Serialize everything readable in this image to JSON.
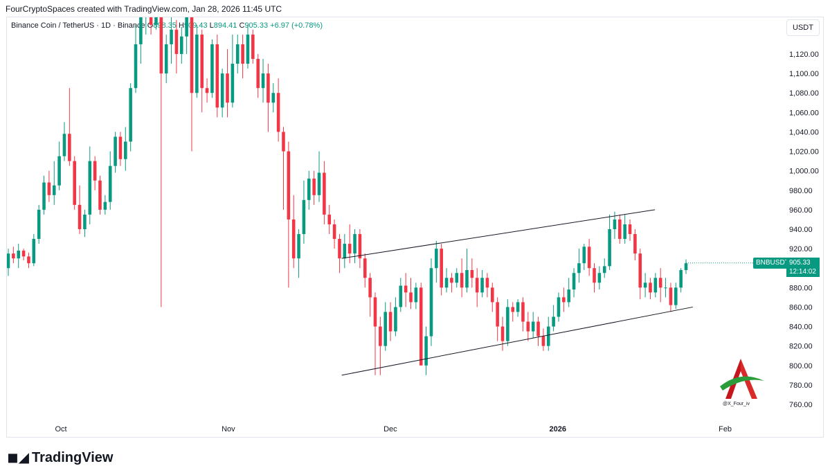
{
  "caption": "FourCryptoSpaces created with TradingView.com, Jan 28, 2026 11:45 UTC",
  "legend": {
    "symbol": "Binance Coin / TetherUS · 1D · Binance",
    "open_label": "O",
    "open": "898.35",
    "high_label": "H",
    "high": "909.43",
    "low_label": "L",
    "low": "894.41",
    "close_label": "C",
    "close": "905.33",
    "change": "+6.97 (+0.78%)"
  },
  "quote_currency": "USDT",
  "symbol_tag": "BNBUSDT",
  "last_price": "905.33",
  "countdown": "12:14:02",
  "brand": "TradingView",
  "watermark_text": "@X_Four_iv",
  "colors": {
    "up": "#089981",
    "down": "#f23645",
    "tag": "#089981"
  },
  "chart_data": {
    "type": "candlestick",
    "y_ticks": [
      "760.00",
      "780.00",
      "800.00",
      "820.00",
      "840.00",
      "860.00",
      "880.00",
      "900.00",
      "920.00",
      "940.00",
      "960.00",
      "980.00",
      "1,000.00",
      "1,020.00",
      "1,040.00",
      "1,060.00",
      "1,080.00",
      "1,100.00",
      "1,120.00"
    ],
    "x_ticks": [
      "Oct",
      "Nov",
      "Dec",
      "2026",
      "Feb"
    ],
    "x_tick_dates": [
      "2025-10-01",
      "2025-11-01",
      "2025-12-01",
      "2026-01-01",
      "2026-02-01"
    ],
    "ylim": [
      750,
      1140
    ],
    "xlim": [
      "2025-09-21",
      "2026-02-09"
    ],
    "channel": {
      "upper": [
        [
          "2025-11-22",
          910
        ],
        [
          "2026-01-19",
          960
        ]
      ],
      "lower": [
        [
          "2025-11-22",
          790
        ],
        [
          "2026-01-26",
          860
        ]
      ]
    },
    "candles": [
      [
        900,
        915,
        892,
        920
      ],
      [
        915,
        910,
        905,
        922
      ],
      [
        910,
        918,
        900,
        925
      ],
      [
        918,
        912,
        908,
        920
      ],
      [
        912,
        905,
        900,
        916
      ],
      [
        905,
        930,
        902,
        935
      ],
      [
        930,
        960,
        925,
        965
      ],
      [
        960,
        988,
        955,
        995
      ],
      [
        988,
        975,
        968,
        1000
      ],
      [
        975,
        985,
        965,
        1010
      ],
      [
        985,
        1015,
        980,
        1030
      ],
      [
        1015,
        1038,
        1010,
        1050
      ],
      [
        1038,
        1010,
        1005,
        1085
      ],
      [
        1010,
        965,
        960,
        1015
      ],
      [
        965,
        940,
        935,
        985
      ],
      [
        940,
        955,
        932,
        960
      ],
      [
        955,
        1010,
        945,
        1025
      ],
      [
        1010,
        990,
        980,
        1015
      ],
      [
        990,
        960,
        955,
        995
      ],
      [
        960,
        968,
        955,
        975
      ],
      [
        968,
        1005,
        960,
        1020
      ],
      [
        1005,
        1035,
        998,
        1040
      ],
      [
        1035,
        1012,
        1005,
        1040
      ],
      [
        1012,
        1030,
        1000,
        1045
      ],
      [
        1030,
        1085,
        1020,
        1090
      ],
      [
        1085,
        1130,
        1080,
        1150
      ],
      [
        1130,
        1165,
        1110,
        1180
      ],
      [
        1165,
        1180,
        1140,
        1230
      ],
      [
        1180,
        1150,
        1140,
        1190
      ],
      [
        1150,
        1160,
        1145,
        1170
      ],
      [
        1160,
        1100,
        860,
        1165
      ],
      [
        1100,
        1130,
        1090,
        1140
      ],
      [
        1130,
        1145,
        1110,
        1160
      ],
      [
        1145,
        1120,
        1100,
        1155
      ],
      [
        1120,
        1138,
        1110,
        1148
      ],
      [
        1138,
        1160,
        1120,
        1170
      ],
      [
        1160,
        1080,
        1020,
        1165
      ],
      [
        1080,
        1140,
        1075,
        1150
      ],
      [
        1140,
        1085,
        1060,
        1145
      ],
      [
        1085,
        1080,
        1070,
        1095
      ],
      [
        1080,
        1130,
        1075,
        1135
      ],
      [
        1130,
        1065,
        1055,
        1140
      ],
      [
        1065,
        1100,
        1055,
        1105
      ],
      [
        1100,
        1070,
        1055,
        1125
      ],
      [
        1070,
        1110,
        1065,
        1140
      ],
      [
        1110,
        1130,
        1100,
        1140
      ],
      [
        1130,
        1110,
        1095,
        1140
      ],
      [
        1110,
        1140,
        1105,
        1150
      ],
      [
        1140,
        1115,
        1110,
        1145
      ],
      [
        1115,
        1085,
        1075,
        1120
      ],
      [
        1085,
        1100,
        1070,
        1115
      ],
      [
        1100,
        1070,
        1040,
        1110
      ],
      [
        1070,
        1080,
        1060,
        1090
      ],
      [
        1080,
        1040,
        1030,
        1095
      ],
      [
        1040,
        1020,
        960,
        1045
      ],
      [
        1020,
        950,
        880,
        1030
      ],
      [
        950,
        910,
        900,
        975
      ],
      [
        910,
        935,
        890,
        940
      ],
      [
        935,
        970,
        925,
        990
      ],
      [
        970,
        992,
        960,
        1000
      ],
      [
        992,
        975,
        965,
        1000
      ],
      [
        975,
        998,
        968,
        1020
      ],
      [
        998,
        955,
        945,
        1010
      ],
      [
        955,
        945,
        935,
        965
      ],
      [
        945,
        930,
        920,
        950
      ],
      [
        930,
        910,
        895,
        935
      ],
      [
        910,
        925,
        900,
        935
      ],
      [
        925,
        915,
        905,
        945
      ],
      [
        915,
        935,
        905,
        940
      ],
      [
        935,
        910,
        900,
        940
      ],
      [
        910,
        890,
        880,
        915
      ],
      [
        890,
        870,
        850,
        895
      ],
      [
        870,
        840,
        790,
        875
      ],
      [
        840,
        820,
        790,
        850
      ],
      [
        820,
        855,
        815,
        865
      ],
      [
        855,
        835,
        825,
        865
      ],
      [
        835,
        860,
        830,
        870
      ],
      [
        860,
        882,
        855,
        890
      ],
      [
        882,
        875,
        860,
        895
      ],
      [
        875,
        865,
        858,
        890
      ],
      [
        865,
        880,
        858,
        885
      ],
      [
        880,
        800,
        800,
        885
      ],
      [
        800,
        830,
        790,
        840
      ],
      [
        830,
        900,
        820,
        910
      ],
      [
        900,
        920,
        885,
        928
      ],
      [
        920,
        880,
        872,
        925
      ],
      [
        880,
        890,
        875,
        900
      ],
      [
        890,
        885,
        875,
        895
      ],
      [
        885,
        895,
        880,
        900
      ],
      [
        895,
        880,
        870,
        910
      ],
      [
        880,
        898,
        875,
        920
      ],
      [
        898,
        890,
        880,
        910
      ],
      [
        890,
        875,
        860,
        900
      ],
      [
        875,
        890,
        870,
        898
      ],
      [
        890,
        880,
        870,
        895
      ],
      [
        880,
        865,
        855,
        885
      ],
      [
        865,
        840,
        825,
        870
      ],
      [
        840,
        825,
        815,
        850
      ],
      [
        825,
        860,
        820,
        868
      ],
      [
        860,
        855,
        845,
        865
      ],
      [
        855,
        865,
        850,
        868
      ],
      [
        865,
        845,
        835,
        870
      ],
      [
        845,
        835,
        825,
        855
      ],
      [
        835,
        845,
        828,
        855
      ],
      [
        845,
        830,
        820,
        850
      ],
      [
        830,
        820,
        815,
        838
      ],
      [
        820,
        840,
        815,
        850
      ],
      [
        840,
        850,
        835,
        862
      ],
      [
        850,
        870,
        845,
        875
      ],
      [
        870,
        865,
        855,
        880
      ],
      [
        865,
        878,
        860,
        890
      ],
      [
        878,
        895,
        870,
        900
      ],
      [
        895,
        905,
        885,
        920
      ],
      [
        905,
        922,
        898,
        925
      ],
      [
        922,
        900,
        892,
        930
      ],
      [
        900,
        885,
        875,
        905
      ],
      [
        885,
        895,
        878,
        902
      ],
      [
        895,
        902,
        890,
        910
      ],
      [
        902,
        940,
        898,
        955
      ],
      [
        940,
        950,
        930,
        958
      ],
      [
        950,
        930,
        925,
        955
      ],
      [
        930,
        945,
        925,
        955
      ],
      [
        945,
        935,
        928,
        950
      ],
      [
        935,
        915,
        908,
        940
      ],
      [
        915,
        880,
        868,
        920
      ],
      [
        880,
        885,
        870,
        895
      ],
      [
        885,
        875,
        868,
        890
      ],
      [
        875,
        890,
        870,
        895
      ],
      [
        890,
        880,
        865,
        900
      ],
      [
        880,
        880,
        870,
        890
      ],
      [
        880,
        862,
        855,
        885
      ],
      [
        862,
        880,
        858,
        885
      ],
      [
        880,
        898,
        875,
        900
      ],
      [
        898,
        905,
        894,
        909
      ]
    ]
  }
}
